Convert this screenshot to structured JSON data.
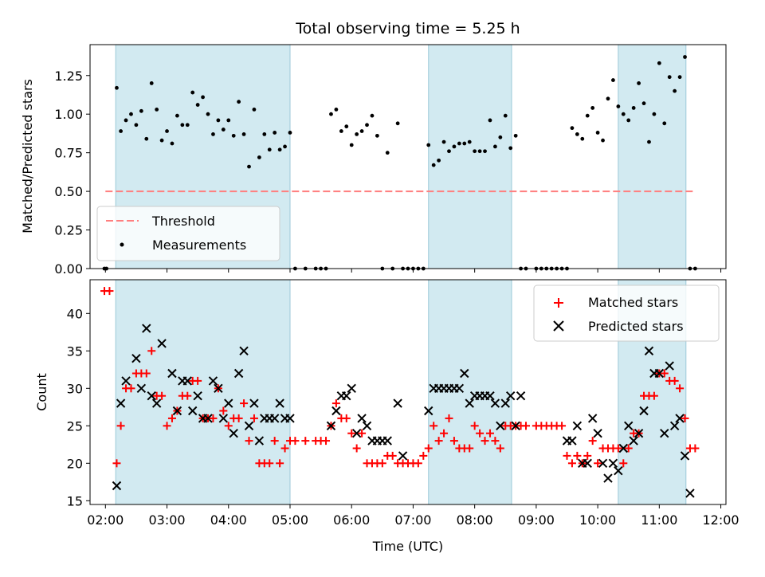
{
  "chart_data": [
    {
      "type": "scatter",
      "title": "Total observing time = 5.25 h",
      "xlabel": "",
      "ylabel": "Matched/Predicted stars",
      "xlim": [
        "01:45",
        "12:05"
      ],
      "ylim": [
        0.0,
        1.45
      ],
      "yticks": [
        "0.00",
        "0.25",
        "0.50",
        "0.75",
        "1.00",
        "1.25"
      ],
      "xticks": [
        "02:00",
        "03:00",
        "04:00",
        "05:00",
        "06:00",
        "07:00",
        "08:00",
        "09:00",
        "10:00",
        "11:00",
        "12:00"
      ],
      "shaded_intervals": [
        [
          "02:10",
          "05:00"
        ],
        [
          "07:15",
          "08:36"
        ],
        [
          "10:20",
          "11:26"
        ]
      ],
      "legend": {
        "placement": "lower-left",
        "entries": [
          "Threshold",
          "Measurements"
        ]
      },
      "threshold": {
        "name": "Threshold",
        "value": 0.5,
        "x_range": [
          "02:00",
          "11:35"
        ],
        "color": "#ff7f7f"
      },
      "series": [
        {
          "name": "Measurements",
          "color": "#000000",
          "x": [
            "01:59",
            "02:01",
            "02:11",
            "02:15",
            "02:20",
            "02:25",
            "02:30",
            "02:35",
            "02:40",
            "02:45",
            "02:50",
            "02:55",
            "03:00",
            "03:05",
            "03:10",
            "03:15",
            "03:20",
            "03:25",
            "03:30",
            "03:35",
            "03:40",
            "03:45",
            "03:50",
            "03:55",
            "04:00",
            "04:05",
            "04:10",
            "04:15",
            "04:20",
            "04:25",
            "04:30",
            "04:35",
            "04:40",
            "04:45",
            "04:50",
            "04:55",
            "05:00",
            "05:05",
            "05:15",
            "05:25",
            "05:30",
            "05:35",
            "05:40",
            "05:45",
            "05:50",
            "05:55",
            "06:00",
            "06:05",
            "06:10",
            "06:15",
            "06:20",
            "06:25",
            "06:30",
            "06:35",
            "06:40",
            "06:45",
            "06:50",
            "06:55",
            "07:00",
            "07:05",
            "07:10",
            "07:15",
            "07:20",
            "07:25",
            "07:30",
            "07:35",
            "07:40",
            "07:45",
            "07:50",
            "07:55",
            "08:00",
            "08:05",
            "08:10",
            "08:15",
            "08:20",
            "08:25",
            "08:30",
            "08:35",
            "08:40",
            "08:45",
            "08:50",
            "09:00",
            "09:05",
            "09:10",
            "09:15",
            "09:20",
            "09:25",
            "09:30",
            "09:35",
            "09:40",
            "09:45",
            "09:50",
            "09:55",
            "10:00",
            "10:05",
            "10:10",
            "10:15",
            "10:20",
            "10:25",
            "10:30",
            "10:35",
            "10:40",
            "10:45",
            "10:50",
            "10:55",
            "11:00",
            "11:05",
            "11:10",
            "11:15",
            "11:20",
            "11:25",
            "11:30",
            "11:35"
          ],
          "y": [
            0.0,
            0.0,
            1.17,
            0.89,
            0.96,
            1.0,
            0.93,
            1.02,
            0.84,
            1.2,
            1.03,
            0.83,
            0.89,
            0.81,
            0.99,
            0.93,
            0.93,
            1.14,
            1.06,
            1.11,
            1.0,
            0.87,
            0.96,
            0.9,
            0.96,
            0.86,
            1.08,
            0.87,
            0.66,
            1.03,
            0.72,
            0.87,
            0.77,
            0.88,
            0.77,
            0.79,
            0.88,
            0.0,
            0.0,
            0.0,
            0.0,
            0.0,
            1.0,
            1.03,
            0.89,
            0.92,
            0.8,
            0.87,
            0.89,
            0.93,
            0.99,
            0.86,
            0.0,
            0.75,
            0.0,
            0.94,
            0.0,
            0.0,
            0.0,
            0.0,
            0.0,
            0.8,
            0.67,
            0.7,
            0.82,
            0.76,
            0.79,
            0.81,
            0.81,
            0.82,
            0.76,
            0.76,
            0.76,
            0.96,
            0.79,
            0.85,
            0.99,
            0.78,
            0.86,
            0.0,
            0.0,
            0.0,
            0.0,
            0.0,
            0.0,
            0.0,
            0.0,
            0.0,
            0.91,
            0.87,
            0.84,
            0.99,
            1.04,
            0.88,
            0.83,
            1.1,
            1.22,
            1.05,
            1.0,
            0.96,
            1.04,
            1.2,
            1.07,
            0.82,
            1.0,
            1.33,
            0.94,
            1.24,
            1.15,
            1.24,
            1.37,
            0.0,
            0.0
          ]
        }
      ]
    },
    {
      "type": "scatter",
      "title": "",
      "xlabel": "Time (UTC)",
      "ylabel": "Count",
      "xlim": [
        "01:45",
        "12:05"
      ],
      "ylim": [
        14.5,
        44.5
      ],
      "yticks": [
        "15",
        "20",
        "25",
        "30",
        "35",
        "40"
      ],
      "xticks": [
        "02:00",
        "03:00",
        "04:00",
        "05:00",
        "06:00",
        "07:00",
        "08:00",
        "09:00",
        "10:00",
        "11:00",
        "12:00"
      ],
      "shaded_intervals": [
        [
          "02:10",
          "05:00"
        ],
        [
          "07:15",
          "08:36"
        ],
        [
          "10:20",
          "11:26"
        ]
      ],
      "legend": {
        "placement": "upper-right",
        "entries": [
          "Matched stars",
          "Predicted stars"
        ]
      },
      "series": [
        {
          "name": "Matched stars",
          "marker": "plus",
          "color": "#ff0000",
          "x": [
            "01:59",
            "02:04",
            "02:11",
            "02:15",
            "02:20",
            "02:25",
            "02:30",
            "02:35",
            "02:40",
            "02:45",
            "02:50",
            "02:55",
            "03:00",
            "03:05",
            "03:10",
            "03:15",
            "03:20",
            "03:25",
            "03:30",
            "03:35",
            "03:40",
            "03:45",
            "03:50",
            "03:55",
            "04:00",
            "04:05",
            "04:10",
            "04:15",
            "04:20",
            "04:25",
            "04:30",
            "04:35",
            "04:40",
            "04:45",
            "04:50",
            "04:55",
            "05:00",
            "05:05",
            "05:15",
            "05:25",
            "05:30",
            "05:35",
            "05:40",
            "05:45",
            "05:50",
            "05:55",
            "06:00",
            "06:05",
            "06:10",
            "06:15",
            "06:20",
            "06:25",
            "06:30",
            "06:35",
            "06:40",
            "06:45",
            "06:50",
            "06:55",
            "07:00",
            "07:05",
            "07:10",
            "07:15",
            "07:20",
            "07:25",
            "07:30",
            "07:35",
            "07:40",
            "07:45",
            "07:50",
            "07:55",
            "08:00",
            "08:05",
            "08:10",
            "08:15",
            "08:20",
            "08:25",
            "08:30",
            "08:35",
            "08:40",
            "08:45",
            "08:50",
            "09:00",
            "09:05",
            "09:10",
            "09:15",
            "09:20",
            "09:25",
            "09:30",
            "09:35",
            "09:40",
            "09:45",
            "09:50",
            "09:55",
            "10:00",
            "10:05",
            "10:10",
            "10:15",
            "10:20",
            "10:25",
            "10:30",
            "10:35",
            "10:40",
            "10:45",
            "10:50",
            "10:55",
            "11:00",
            "11:05",
            "11:10",
            "11:15",
            "11:20",
            "11:25",
            "11:30",
            "11:35"
          ],
          "y": [
            43,
            43,
            20,
            25,
            30,
            30,
            32,
            32,
            32,
            35,
            29,
            29,
            25,
            26,
            27,
            29,
            29,
            31,
            31,
            26,
            26,
            26,
            30,
            27,
            25,
            26,
            26,
            28,
            23,
            26,
            20,
            20,
            20,
            23,
            20,
            22,
            23,
            23,
            23,
            23,
            23,
            23,
            25,
            28,
            26,
            26,
            24,
            22,
            24,
            20,
            20,
            20,
            20,
            21,
            21,
            20,
            20,
            20,
            20,
            20,
            21,
            22,
            25,
            23,
            24,
            26,
            23,
            22,
            22,
            22,
            25,
            24,
            23,
            24,
            23,
            22,
            25,
            25,
            25,
            25,
            25,
            25,
            25,
            25,
            25,
            25,
            25,
            21,
            20,
            21,
            20,
            21,
            23,
            20,
            22,
            22,
            22,
            22,
            20,
            22,
            24,
            24,
            29,
            29,
            29,
            32,
            32,
            31,
            31,
            30,
            26,
            22,
            22
          ]
        },
        {
          "name": "Predicted stars",
          "marker": "x",
          "color": "#000000",
          "x": [
            "02:11",
            "02:15",
            "02:20",
            "02:30",
            "02:35",
            "02:40",
            "02:45",
            "02:50",
            "02:55",
            "03:05",
            "03:10",
            "03:15",
            "03:20",
            "03:25",
            "03:30",
            "03:35",
            "03:40",
            "03:45",
            "03:50",
            "03:55",
            "04:00",
            "04:05",
            "04:10",
            "04:15",
            "04:20",
            "04:25",
            "04:30",
            "04:35",
            "04:40",
            "04:45",
            "04:50",
            "04:55",
            "05:00",
            "05:40",
            "05:45",
            "05:50",
            "05:55",
            "06:00",
            "06:05",
            "06:10",
            "06:15",
            "06:20",
            "06:25",
            "06:30",
            "06:35",
            "06:45",
            "06:50",
            "07:15",
            "07:20",
            "07:25",
            "07:30",
            "07:35",
            "07:40",
            "07:45",
            "07:50",
            "07:55",
            "08:00",
            "08:05",
            "08:10",
            "08:15",
            "08:20",
            "08:25",
            "08:30",
            "08:35",
            "08:40",
            "08:45",
            "09:30",
            "09:35",
            "09:40",
            "09:45",
            "09:50",
            "09:55",
            "10:00",
            "10:05",
            "10:10",
            "10:15",
            "10:20",
            "10:25",
            "10:30",
            "10:35",
            "10:40",
            "10:45",
            "10:50",
            "10:55",
            "11:00",
            "11:05",
            "11:10",
            "11:15",
            "11:20",
            "11:25",
            "11:30"
          ],
          "y": [
            17,
            28,
            31,
            34,
            30,
            38,
            29,
            28,
            36,
            32,
            27,
            31,
            31,
            27,
            29,
            26,
            26,
            31,
            30,
            26,
            28,
            24,
            32,
            35,
            25,
            28,
            23,
            26,
            26,
            26,
            28,
            26,
            26,
            25,
            27,
            29,
            29,
            30,
            24,
            26,
            25,
            23,
            23,
            23,
            23,
            28,
            21,
            27,
            30,
            30,
            30,
            30,
            30,
            30,
            32,
            28,
            29,
            29,
            29,
            29,
            28,
            25,
            28,
            29,
            25,
            29,
            23,
            23,
            25,
            20,
            20,
            26,
            24,
            20,
            18,
            20,
            19,
            22,
            25,
            23,
            24,
            27,
            35,
            32,
            32,
            24,
            33,
            25,
            26,
            21,
            16
          ]
        }
      ]
    }
  ]
}
